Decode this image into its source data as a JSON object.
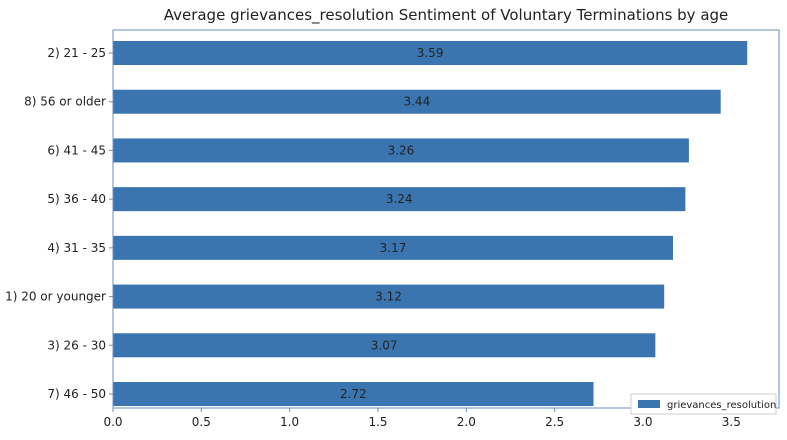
{
  "chart_data": {
    "type": "bar",
    "orientation": "horizontal",
    "title": "Average grievances_resolution Sentiment of Voluntary Terminations by age",
    "xlabel": "",
    "ylabel": "",
    "categories": [
      "2) 21 - 25",
      "8) 56 or older",
      "6) 41 - 45",
      "5) 36 - 40",
      "4) 31 - 35",
      "1) 20 or younger",
      "3) 26 - 30",
      "7) 46 - 50"
    ],
    "series": [
      {
        "name": "grievances_resolution",
        "values": [
          3.59,
          3.44,
          3.26,
          3.24,
          3.17,
          3.12,
          3.07,
          2.72
        ],
        "data_labels": [
          "3.59",
          "3.44",
          "3.26",
          "3.24",
          "3.17",
          "3.12",
          "3.07",
          "2.72"
        ]
      }
    ],
    "xlim": [
      0,
      3.77
    ],
    "xticks": [
      0.0,
      0.5,
      1.0,
      1.5,
      2.0,
      2.5,
      3.0,
      3.5
    ],
    "xtick_labels": [
      "0.0",
      "0.5",
      "1.0",
      "1.5",
      "2.0",
      "2.5",
      "3.0",
      "3.5"
    ],
    "grid": false,
    "legend_position": "bottom-right",
    "bar_color": "#3a75b0",
    "axis_color": "#6a8fc0"
  }
}
